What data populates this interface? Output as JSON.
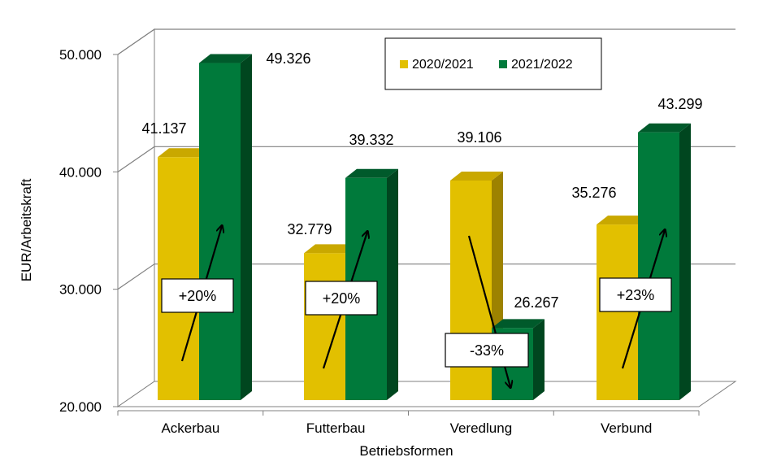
{
  "chart_data": {
    "type": "bar",
    "categories": [
      "Ackerbau",
      "Futterbau",
      "Veredlung",
      "Verbund"
    ],
    "series": [
      {
        "name": "2020/2021",
        "values": [
          41137,
          32779,
          39106,
          35276
        ]
      },
      {
        "name": "2021/2022",
        "values": [
          49326,
          39332,
          26267,
          43299
        ]
      }
    ],
    "value_labels": [
      [
        "41.137",
        "32.779",
        "39.106",
        "35.276"
      ],
      [
        "49.326",
        "39.332",
        "26.267",
        "43.299"
      ]
    ],
    "changes": [
      "+20%",
      "+20%",
      "-33%",
      "+23%"
    ],
    "xlabel": "Betriebsformen",
    "ylabel": "EUR/Arbeitskraft",
    "ylim": [
      20000,
      50000
    ],
    "yticks": [
      20000,
      30000,
      40000,
      50000
    ],
    "ytick_labels": [
      "20.000",
      "30.000",
      "40.000",
      "50.000"
    ],
    "grid": true,
    "legend": "top-right",
    "colors": {
      "2020/2021": "#e2c000",
      "2021/2022": "#007a3b",
      "2020/2021_top": "#c9a800",
      "2020/2021_side": "#9d8200",
      "2021/2022_top": "#005a2b",
      "2021/2022_side": "#00461f"
    }
  }
}
